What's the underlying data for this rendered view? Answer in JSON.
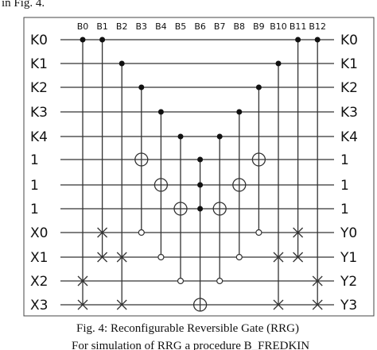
{
  "top_text": "in Fig. 4.",
  "figure": {
    "column_labels": [
      "B0",
      "B1",
      "B2",
      "B3",
      "B4",
      "B5",
      "B6",
      "B7",
      "B8",
      "B9",
      "B10",
      "B11",
      "B12"
    ],
    "left_labels": [
      "K0",
      "K1",
      "K2",
      "K3",
      "K4",
      "1",
      "1",
      "1",
      "X0",
      "X1",
      "X2",
      "X3"
    ],
    "right_labels": [
      "K0",
      "K1",
      "K2",
      "K3",
      "K4",
      "1",
      "1",
      "1",
      "Y0",
      "Y1",
      "Y2",
      "Y3"
    ]
  },
  "caption": "Fig. 4: Reconfigurable Reversible Gate (RRG)",
  "body_text": "For simulation of RRG a procedure B_FREDKIN"
}
